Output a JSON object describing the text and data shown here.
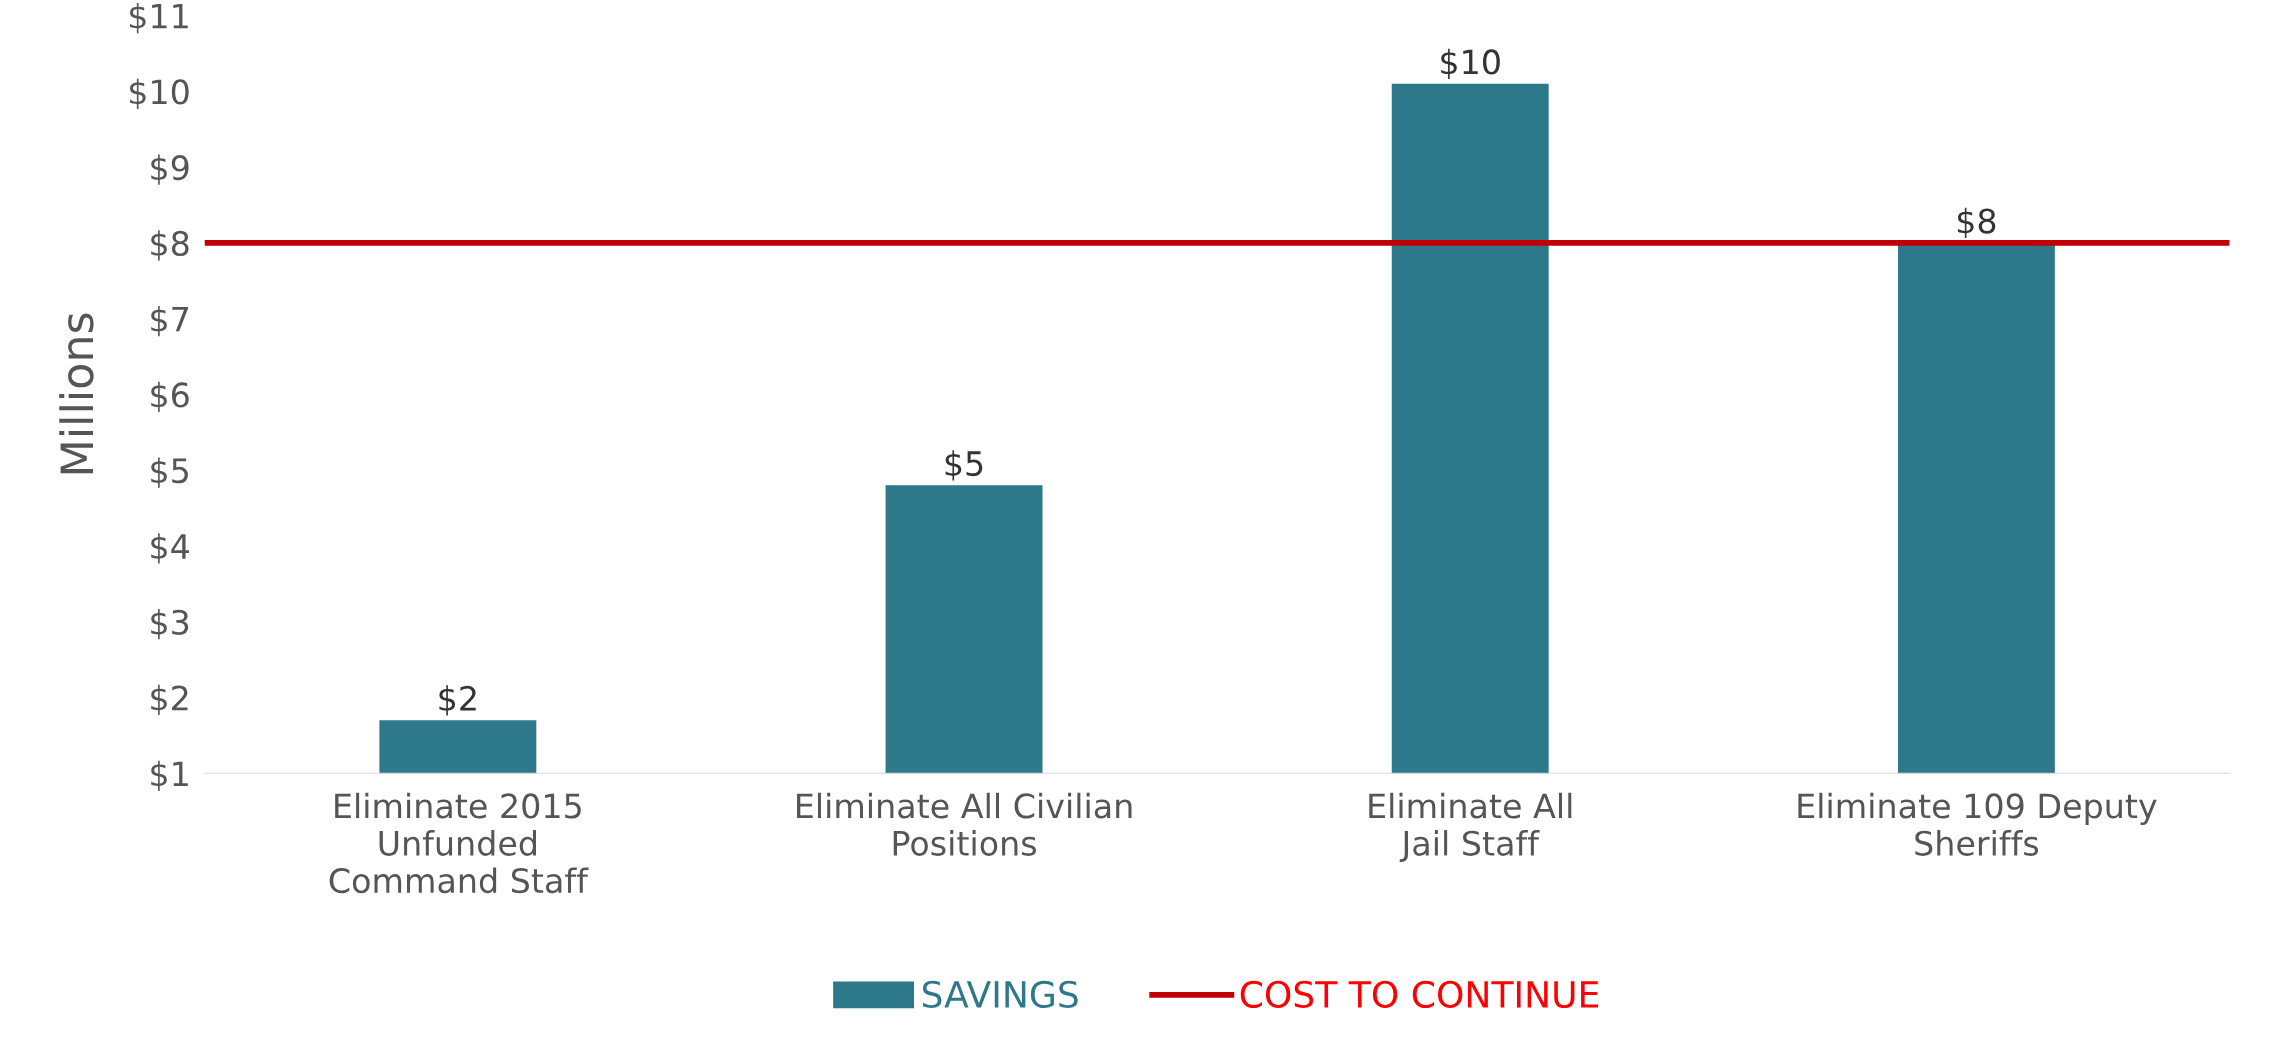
{
  "chart_data": {
    "type": "bar",
    "ylabel": "Millions",
    "categories": [
      "Eliminate 2015\nUnfunded\nCommand Staff",
      "Eliminate All Civilian\nPositions",
      "Eliminate All\nJail Staff",
      "Eliminate 109 Deputy\nSheriffs"
    ],
    "series": [
      {
        "name": "SAVINGS",
        "color": "#2e788c",
        "values": [
          1.7,
          4.8,
          10.1,
          8.0
        ],
        "value_labels": [
          "$2",
          "$5",
          "$10",
          "$8"
        ]
      }
    ],
    "ref_lines": [
      {
        "axis": "y",
        "value": 8.0,
        "label": "COST TO CONTINUE",
        "color": "#c00000",
        "line_style": "solid"
      }
    ],
    "ylim": [
      1,
      11
    ],
    "yticks": [
      {
        "value": 1,
        "label": "$1"
      },
      {
        "value": 2,
        "label": "$2"
      },
      {
        "value": 3,
        "label": "$3"
      },
      {
        "value": 4,
        "label": "$4"
      },
      {
        "value": 5,
        "label": "$5"
      },
      {
        "value": 6,
        "label": "$6"
      },
      {
        "value": 7,
        "label": "$7"
      },
      {
        "value": 8,
        "label": "$8"
      },
      {
        "value": 9,
        "label": "$9"
      },
      {
        "value": 10,
        "label": "$10"
      },
      {
        "value": 11,
        "label": "$11"
      }
    ],
    "grid": false,
    "legend": "bottom"
  }
}
